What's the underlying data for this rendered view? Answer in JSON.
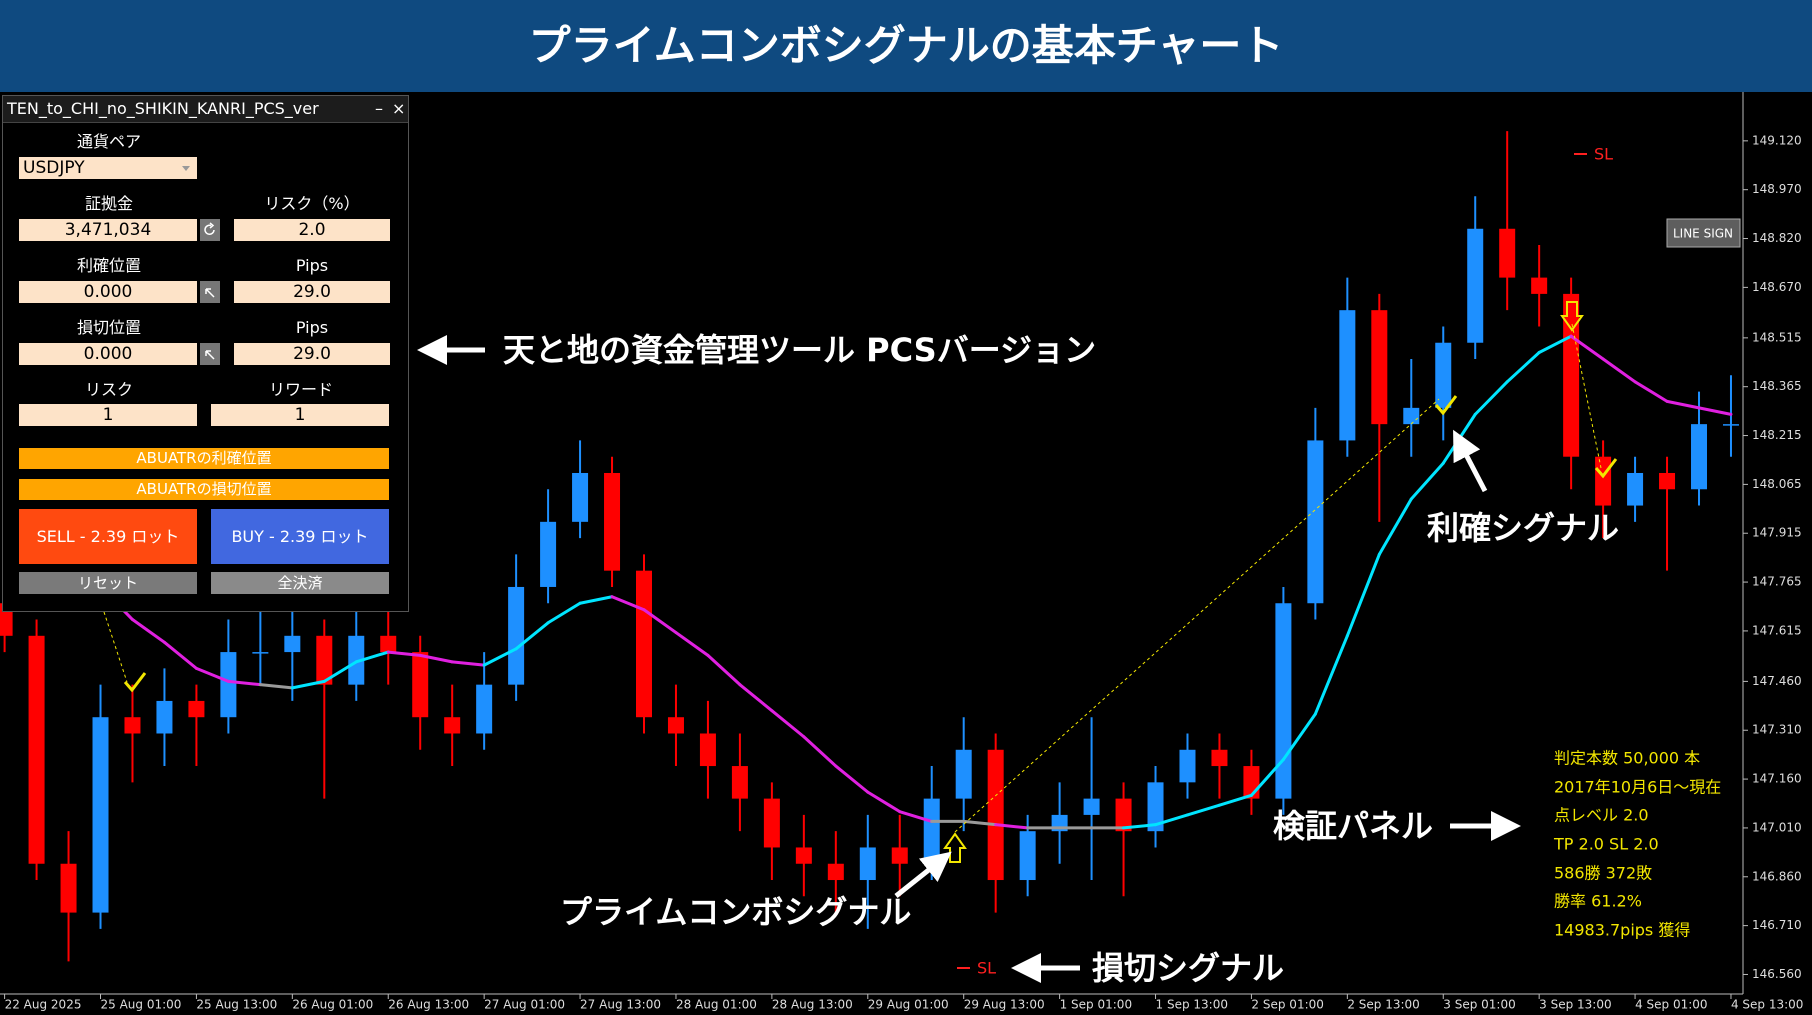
{
  "header": {
    "title": "プライムコンボシグナルの基本チャート"
  },
  "panel": {
    "title": "TEN_to_CHI_no_SHIKIN_KANRI_PCS_ver",
    "minimize": "–",
    "close": "×",
    "pair_label": "通貨ペア",
    "pair": "USDJPY",
    "margin_label": "証拠金",
    "margin": "3,471,034",
    "risk_pct_label": "リスク（%）",
    "risk_pct": "2.0",
    "tp_label": "利確位置",
    "tp": "0.000",
    "tp_pips_label": "Pips",
    "tp_pips": "29.0",
    "sl_label": "損切位置",
    "sl": "0.000",
    "sl_pips_label": "Pips",
    "sl_pips": "29.0",
    "risk_label": "リスク",
    "risk": "1",
    "reward_label": "リワード",
    "reward": "1",
    "buttons": {
      "abu_tp": "ABUATRの利確位置",
      "abu_sl": "ABUATRの損切位置",
      "sell": "SELL - 2.39 ロット",
      "buy": "BUY - 2.39 ロット",
      "reset": "リセット",
      "close_all": "全決済"
    }
  },
  "chart_data": {
    "type": "candlestick",
    "up_color": "#1e90ff",
    "down_color": "#ff0000",
    "ma_colors": {
      "rising": "#00e5ff",
      "falling": "#e020e0",
      "flat": "#9a9a9a"
    },
    "ylim": [
      146.5,
      149.27
    ],
    "yticks": [
      {
        "value": 149.12,
        "label": "149.120"
      },
      {
        "value": 148.97,
        "label": "148.970"
      },
      {
        "value": 148.82,
        "label": "148.820"
      },
      {
        "value": 148.67,
        "label": "148.670"
      },
      {
        "value": 148.515,
        "label": "148.515"
      },
      {
        "value": 148.365,
        "label": "148.365"
      },
      {
        "value": 148.215,
        "label": "148.215"
      },
      {
        "value": 148.065,
        "label": "148.065"
      },
      {
        "value": 147.915,
        "label": "147.915"
      },
      {
        "value": 147.765,
        "label": "147.765"
      },
      {
        "value": 147.615,
        "label": "147.615"
      },
      {
        "value": 147.46,
        "label": "147.460"
      },
      {
        "value": 147.31,
        "label": "147.310"
      },
      {
        "value": 147.16,
        "label": "147.160"
      },
      {
        "value": 147.01,
        "label": "147.010"
      },
      {
        "value": 146.86,
        "label": "146.860"
      },
      {
        "value": 146.71,
        "label": "146.710"
      },
      {
        "value": 146.56,
        "label": "146.560"
      }
    ],
    "x_labels": [
      "22 Aug 2025",
      "25 Aug 01:00",
      "25 Aug 13:00",
      "26 Aug 01:00",
      "26 Aug 13:00",
      "27 Aug 01:00",
      "27 Aug 13:00",
      "28 Aug 01:00",
      "28 Aug 13:00",
      "29 Aug 01:00",
      "29 Aug 13:00",
      "1 Sep 01:00",
      "1 Sep 13:00",
      "2 Sep 01:00",
      "2 Sep 13:00",
      "3 Sep 01:00",
      "3 Sep 13:00",
      "4 Sep 01:00",
      "4 Sep 13:00"
    ],
    "candles": [
      [
        147.7,
        147.8,
        147.55,
        147.6
      ],
      [
        147.6,
        147.65,
        146.85,
        146.9
      ],
      [
        146.9,
        147.0,
        146.6,
        146.75
      ],
      [
        146.75,
        147.45,
        146.7,
        147.35
      ],
      [
        147.35,
        147.45,
        147.15,
        147.3
      ],
      [
        147.3,
        147.5,
        147.2,
        147.4
      ],
      [
        147.4,
        147.45,
        147.2,
        147.35
      ],
      [
        147.35,
        147.65,
        147.3,
        147.55
      ],
      [
        147.55,
        147.7,
        147.45,
        147.55
      ],
      [
        147.55,
        147.7,
        147.4,
        147.6
      ],
      [
        147.6,
        147.65,
        147.1,
        147.45
      ],
      [
        147.45,
        147.7,
        147.4,
        147.6
      ],
      [
        147.6,
        147.7,
        147.45,
        147.55
      ],
      [
        147.55,
        147.6,
        147.25,
        147.35
      ],
      [
        147.35,
        147.45,
        147.2,
        147.3
      ],
      [
        147.3,
        147.55,
        147.25,
        147.45
      ],
      [
        147.45,
        147.85,
        147.4,
        147.75
      ],
      [
        147.75,
        148.05,
        147.7,
        147.95
      ],
      [
        147.95,
        148.2,
        147.9,
        148.1
      ],
      [
        148.1,
        148.15,
        147.75,
        147.8
      ],
      [
        147.8,
        147.85,
        147.3,
        147.35
      ],
      [
        147.35,
        147.45,
        147.2,
        147.3
      ],
      [
        147.3,
        147.4,
        147.1,
        147.2
      ],
      [
        147.2,
        147.3,
        147.0,
        147.1
      ],
      [
        147.1,
        147.15,
        146.85,
        146.95
      ],
      [
        146.95,
        147.05,
        146.8,
        146.9
      ],
      [
        146.9,
        147.0,
        146.75,
        146.85
      ],
      [
        146.85,
        147.05,
        146.7,
        146.95
      ],
      [
        146.95,
        147.05,
        146.8,
        146.9
      ],
      [
        146.9,
        147.2,
        146.85,
        147.1
      ],
      [
        147.1,
        147.35,
        147.0,
        147.25
      ],
      [
        147.25,
        147.3,
        146.75,
        146.85
      ],
      [
        146.85,
        147.05,
        146.8,
        147.0
      ],
      [
        147.0,
        147.15,
        146.9,
        147.05
      ],
      [
        147.05,
        147.35,
        146.85,
        147.1
      ],
      [
        147.1,
        147.15,
        146.8,
        147.0
      ],
      [
        147.0,
        147.2,
        146.95,
        147.15
      ],
      [
        147.15,
        147.3,
        147.1,
        147.25
      ],
      [
        147.25,
        147.3,
        147.1,
        147.2
      ],
      [
        147.2,
        147.25,
        147.05,
        147.1
      ],
      [
        147.1,
        147.75,
        147.05,
        147.7
      ],
      [
        147.7,
        148.3,
        147.65,
        148.2
      ],
      [
        148.2,
        148.7,
        148.15,
        148.6
      ],
      [
        148.6,
        148.65,
        147.95,
        148.25
      ],
      [
        148.25,
        148.45,
        148.15,
        148.3
      ],
      [
        148.3,
        148.55,
        148.2,
        148.5
      ],
      [
        148.5,
        148.95,
        148.45,
        148.85
      ],
      [
        148.85,
        149.15,
        148.6,
        148.7
      ],
      [
        148.7,
        148.8,
        148.55,
        148.65
      ],
      [
        148.65,
        148.7,
        148.05,
        148.15
      ],
      [
        148.15,
        148.2,
        147.9,
        148.0
      ],
      [
        148.0,
        148.15,
        147.95,
        148.1
      ],
      [
        148.1,
        148.15,
        147.8,
        148.05
      ],
      [
        148.05,
        148.35,
        148.0,
        148.25
      ],
      [
        148.25,
        148.4,
        148.15,
        148.25
      ]
    ],
    "ma": [
      null,
      null,
      null,
      147.75,
      147.65,
      147.58,
      147.5,
      147.46,
      147.45,
      147.44,
      147.46,
      147.52,
      147.55,
      147.54,
      147.52,
      147.51,
      147.56,
      147.64,
      147.7,
      147.72,
      147.68,
      147.61,
      147.54,
      147.45,
      147.37,
      147.29,
      147.2,
      147.12,
      147.06,
      147.03,
      147.03,
      147.02,
      147.01,
      147.01,
      147.01,
      147.01,
      147.02,
      147.05,
      147.08,
      147.11,
      147.22,
      147.36,
      147.6,
      147.85,
      148.02,
      148.13,
      148.28,
      148.38,
      148.47,
      148.52,
      148.45,
      148.38,
      148.32,
      148.3,
      148.28
    ],
    "sl_labels": [
      "SL",
      "SL"
    ],
    "line_sign": "LINE SIGN",
    "annotations": {
      "tool": "天と地の資金管理ツール PCSバージョン",
      "tp_signal": "利確シグナル",
      "prime": "プライムコンボシグナル",
      "panel": "検証パネル",
      "sl_signal": "損切シグナル"
    },
    "stats": [
      "判定本数 50,000 本",
      "2017年10月6日～現在",
      "点レベル 2.0",
      "TP 2.0 SL 2.0",
      "586勝 372敗",
      "勝率 61.2%",
      "14983.7pips 獲得"
    ]
  }
}
